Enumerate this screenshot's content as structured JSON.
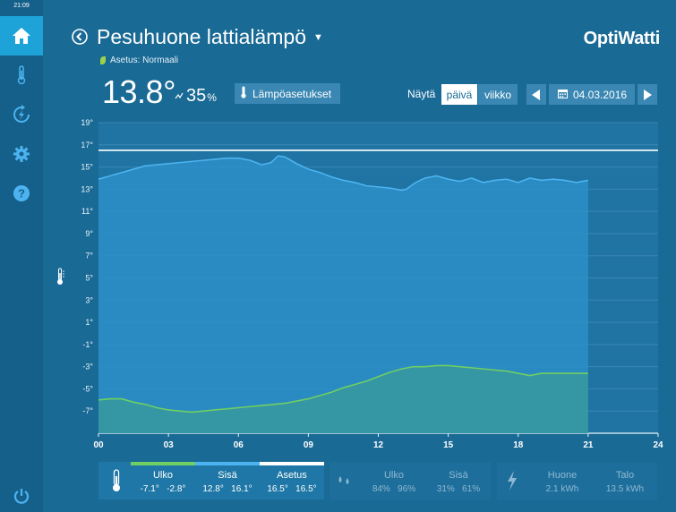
{
  "clock": "21:09",
  "header": {
    "title": "Pesuhuone lattialämpö",
    "setting": "Asetus: Normaali",
    "logo": "OptiWatti"
  },
  "current": {
    "temperature": "13.8°",
    "humidity_value": "35",
    "humidity_unit": "%"
  },
  "toolbar": {
    "temp_settings_label": "Lämpöasetukset",
    "show_label": "Näytä",
    "day_label": "päivä",
    "week_label": "viikko",
    "date": "04.03.2016"
  },
  "chart_data": {
    "type": "area",
    "ylabel_icon": "thermometer-icon",
    "ylim": [
      -9,
      19
    ],
    "xlim": [
      0,
      24
    ],
    "y_ticks": [
      "19°",
      "17°",
      "15°",
      "13°",
      "11°",
      "9°",
      "7°",
      "5°",
      "3°",
      "1°",
      "-1°",
      "-3°",
      "-5°",
      "-7°"
    ],
    "y_tick_values": [
      19,
      17,
      15,
      13,
      11,
      9,
      7,
      5,
      3,
      1,
      -1,
      -3,
      -5,
      -7
    ],
    "x_ticks": [
      "00",
      "03",
      "06",
      "09",
      "12",
      "15",
      "18",
      "21",
      "24"
    ],
    "x_tick_values": [
      0,
      3,
      6,
      9,
      12,
      15,
      18,
      21,
      24
    ],
    "data_end_hour": 21,
    "setpoint": 16.5,
    "series": [
      {
        "name": "Sisä",
        "color": "#4db3f0",
        "points": [
          [
            0,
            13.9
          ],
          [
            0.5,
            14.2
          ],
          [
            1,
            14.5
          ],
          [
            1.5,
            14.8
          ],
          [
            2,
            15.1
          ],
          [
            2.5,
            15.2
          ],
          [
            3,
            15.3
          ],
          [
            3.5,
            15.4
          ],
          [
            4,
            15.5
          ],
          [
            4.5,
            15.6
          ],
          [
            5,
            15.7
          ],
          [
            5.5,
            15.8
          ],
          [
            6,
            15.8
          ],
          [
            6.5,
            15.6
          ],
          [
            7,
            15.2
          ],
          [
            7.4,
            15.4
          ],
          [
            7.7,
            16.0
          ],
          [
            8,
            15.9
          ],
          [
            8.5,
            15.3
          ],
          [
            9,
            14.8
          ],
          [
            9.5,
            14.5
          ],
          [
            10,
            14.1
          ],
          [
            10.5,
            13.8
          ],
          [
            11,
            13.6
          ],
          [
            11.5,
            13.3
          ],
          [
            12,
            13.2
          ],
          [
            12.5,
            13.1
          ],
          [
            13,
            12.9
          ],
          [
            13.2,
            13.0
          ],
          [
            13.6,
            13.6
          ],
          [
            14,
            14.0
          ],
          [
            14.5,
            14.2
          ],
          [
            15,
            13.9
          ],
          [
            15.5,
            13.7
          ],
          [
            16,
            14.0
          ],
          [
            16.5,
            13.6
          ],
          [
            17,
            13.8
          ],
          [
            17.5,
            13.9
          ],
          [
            18,
            13.6
          ],
          [
            18.5,
            14.0
          ],
          [
            19,
            13.8
          ],
          [
            19.5,
            13.9
          ],
          [
            20,
            13.8
          ],
          [
            20.5,
            13.6
          ],
          [
            21,
            13.8
          ]
        ]
      },
      {
        "name": "Ulko",
        "color": "#6fcf63",
        "points": [
          [
            0,
            -6.0
          ],
          [
            0.5,
            -5.9
          ],
          [
            1,
            -5.9
          ],
          [
            1.5,
            -6.2
          ],
          [
            2,
            -6.4
          ],
          [
            2.5,
            -6.7
          ],
          [
            3,
            -6.9
          ],
          [
            3.5,
            -7.0
          ],
          [
            4,
            -7.1
          ],
          [
            4.5,
            -7.0
          ],
          [
            5,
            -6.9
          ],
          [
            5.5,
            -6.8
          ],
          [
            6,
            -6.7
          ],
          [
            6.5,
            -6.6
          ],
          [
            7,
            -6.5
          ],
          [
            7.5,
            -6.4
          ],
          [
            8,
            -6.3
          ],
          [
            8.5,
            -6.1
          ],
          [
            9,
            -5.9
          ],
          [
            9.5,
            -5.6
          ],
          [
            10,
            -5.3
          ],
          [
            10.5,
            -4.9
          ],
          [
            11,
            -4.6
          ],
          [
            11.5,
            -4.3
          ],
          [
            12,
            -3.9
          ],
          [
            12.5,
            -3.5
          ],
          [
            13,
            -3.2
          ],
          [
            13.5,
            -3.0
          ],
          [
            14,
            -3.0
          ],
          [
            14.5,
            -2.9
          ],
          [
            15,
            -2.9
          ],
          [
            15.5,
            -3.0
          ],
          [
            16,
            -3.1
          ],
          [
            16.5,
            -3.2
          ],
          [
            17,
            -3.3
          ],
          [
            17.5,
            -3.4
          ],
          [
            18,
            -3.6
          ],
          [
            18.5,
            -3.8
          ],
          [
            19,
            -3.6
          ],
          [
            19.5,
            -3.6
          ],
          [
            20,
            -3.6
          ],
          [
            20.5,
            -3.6
          ],
          [
            21,
            -3.6
          ]
        ]
      }
    ]
  },
  "temperature_panel": {
    "icon": "thermometer-icon",
    "ulko": {
      "label": "Ulko",
      "min": "-7.1°",
      "max": "-2.8°",
      "color": "#6fcf63"
    },
    "sisa": {
      "label": "Sisä",
      "min": "12.8°",
      "max": "16.1°",
      "color": "#4db3f0"
    },
    "asetus": {
      "label": "Asetus",
      "min": "16.5°",
      "max": "16.5°",
      "color": "#ffffff"
    }
  },
  "humidity_panel": {
    "icon": "droplets-icon",
    "ulko": {
      "label": "Ulko",
      "min": "84%",
      "max": "96%"
    },
    "sisa": {
      "label": "Sisä",
      "min": "31%",
      "max": "61%"
    }
  },
  "energy_panel": {
    "icon": "lightning-icon",
    "huone": {
      "label": "Huone",
      "value": "2.1 kWh"
    },
    "talo": {
      "label": "Talo",
      "value": "13.5 kWh"
    }
  }
}
